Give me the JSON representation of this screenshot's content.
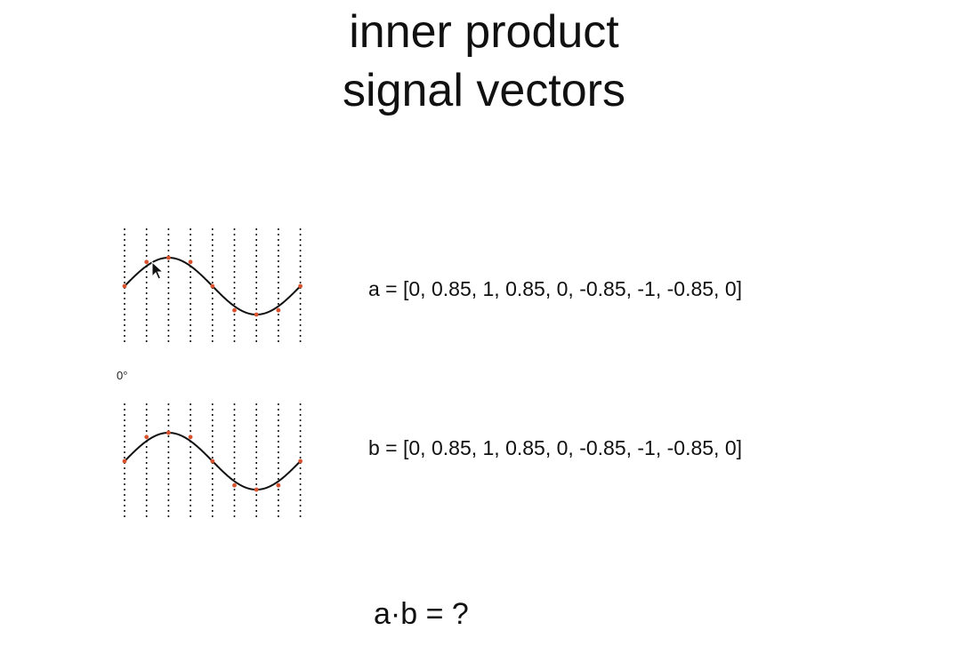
{
  "title": {
    "line1": "inner product",
    "line2": "signal vectors"
  },
  "phase_label": "0°",
  "vector_a": {
    "label": "a = [0, 0.85, 1, 0.85, 0, -0.85, -1, -0.85, 0]",
    "values": [
      0,
      0.85,
      1,
      0.85,
      0,
      -0.85,
      -1,
      -0.85,
      0
    ]
  },
  "vector_b": {
    "label": "b = [0, 0.85, 1, 0.85, 0, -0.85, -1, -0.85, 0]",
    "values": [
      0,
      0.85,
      1,
      0.85,
      0,
      -0.85,
      -1,
      -0.85,
      0
    ]
  },
  "question": "a·b = ?",
  "colors": {
    "sample_point": "#d9532f",
    "curve": "#111111",
    "grid": "#111111"
  }
}
